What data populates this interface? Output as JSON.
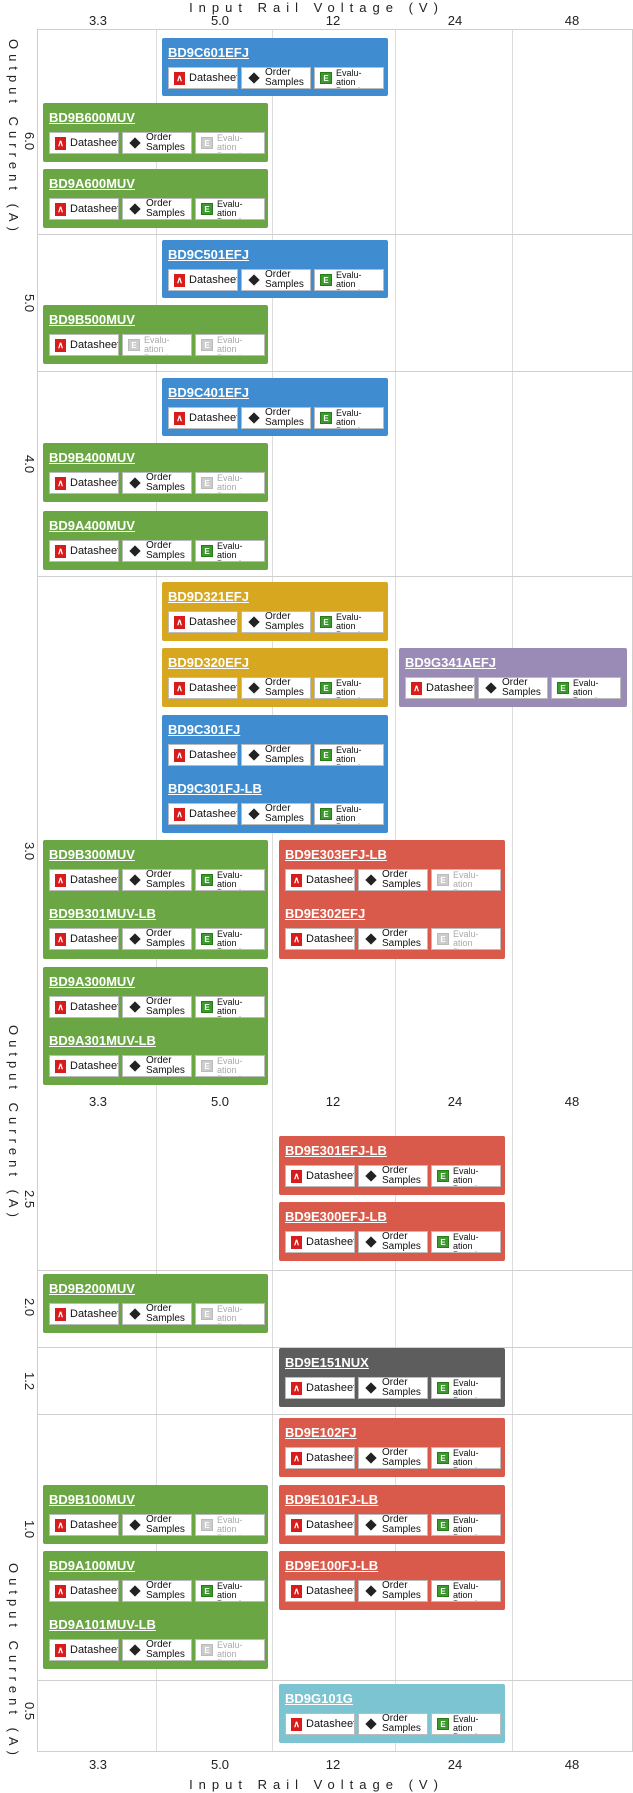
{
  "x_axis": {
    "title": "Input Rail Voltage (V)",
    "ticks": [
      "3.3",
      "5.0",
      "12",
      "24",
      "48"
    ]
  },
  "y_axis": {
    "title": "Output Current (A)",
    "groups_top": [
      "6.0",
      "5.0",
      "4.0",
      "3.0"
    ],
    "groups_bottom": [
      "2.5",
      "2.0",
      "1.2",
      "1.0",
      "0.5"
    ]
  },
  "buttons": {
    "datasheet": "Datasheet",
    "samples_line1": "Order",
    "samples_line2": "Samples",
    "boards_line1": "Order Evalu-",
    "boards_line2": "ation Boards"
  },
  "colors": {
    "blue": "#3f8dd0",
    "green": "#6aa744",
    "gold": "#d6a71f",
    "red": "#d95a4a",
    "purple": "#9a8ab6",
    "dark": "#5d5d5d",
    "cyan": "#7cc4d2"
  },
  "parts": {
    "p1": "BD9C601EFJ",
    "p2": "BD9B600MUV",
    "p3": "BD9A600MUV",
    "p4": "BD9C501EFJ",
    "p5": "BD9B500MUV",
    "p6": "BD9C401EFJ",
    "p7": "BD9B400MUV",
    "p8": "BD9A400MUV",
    "p9": "BD9D321EFJ",
    "p10": "BD9D320EFJ",
    "p11": "BD9G341AEFJ",
    "p12": "BD9C301FJ",
    "p13": "BD9C301FJ-LB",
    "p14": "BD9B300MUV",
    "p15": "BD9B301MUV-LB",
    "p16": "BD9E303EFJ-LB",
    "p17": "BD9E302EFJ",
    "p18": "BD9A300MUV",
    "p19": "BD9A301MUV-LB",
    "p20": "BD9E301EFJ-LB",
    "p21": "BD9E300EFJ-LB",
    "p22": "BD9B200MUV",
    "p23": "BD9E151NUX",
    "p24": "BD9E102FJ",
    "p25": "BD9E101FJ-LB",
    "p26": "BD9B100MUV",
    "p27": "BD9A100MUV",
    "p28": "BD9E100FJ-LB",
    "p29": "BD9A101MUV-LB",
    "p30": "BD9G101G"
  }
}
